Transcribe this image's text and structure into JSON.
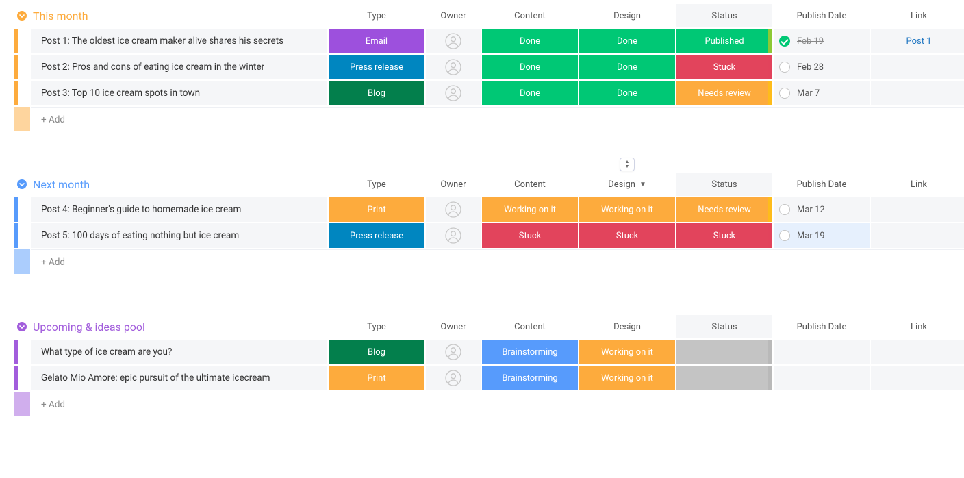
{
  "columns": [
    "Type",
    "Owner",
    "Content",
    "Design",
    "Status",
    "Publish Date",
    "Link"
  ],
  "groups": [
    {
      "id": "this-month",
      "title": "This month",
      "color": "#fdab3d",
      "title_color": "#fdab3d",
      "header_shade_col": "Status",
      "header_dropdown_col": null,
      "header_sort_handle_col": null,
      "add_label": "+ Add",
      "rows": [
        {
          "name": "Post 1: The oldest ice cream maker alive shares his secrets",
          "type": {
            "label": "Email",
            "bg": "#9d50dd"
          },
          "content": {
            "label": "Done",
            "bg": "#00c875"
          },
          "design": {
            "label": "Done",
            "bg": "#00c875"
          },
          "status": {
            "label": "Published",
            "bg": "#00c875",
            "stripe": "#ffcb00"
          },
          "check": "checked",
          "selected": false,
          "date": "Feb 19",
          "date_strike": true,
          "link": "Post 1"
        },
        {
          "name": "Post 2: Pros and cons of eating ice cream in the winter",
          "type": {
            "label": "Press release",
            "bg": "#0086c0"
          },
          "content": {
            "label": "Done",
            "bg": "#00c875"
          },
          "design": {
            "label": "Done",
            "bg": "#00c875"
          },
          "status": {
            "label": "Stuck",
            "bg": "#e2445c",
            "stripe": "#e2445c"
          },
          "check": "ring",
          "selected": false,
          "date": "Feb 28",
          "date_strike": false,
          "link": ""
        },
        {
          "name": "Post 3: Top 10 ice cream spots in town",
          "type": {
            "label": "Blog",
            "bg": "#037f4c"
          },
          "content": {
            "label": "Done",
            "bg": "#00c875"
          },
          "design": {
            "label": "Done",
            "bg": "#00c875"
          },
          "status": {
            "label": "Needs review",
            "bg": "#fdab3d",
            "stripe": "#ffcb00"
          },
          "check": "ring",
          "selected": false,
          "date": "Mar 7",
          "date_strike": false,
          "link": ""
        }
      ]
    },
    {
      "id": "next-month",
      "title": "Next month",
      "color": "#579bfc",
      "title_color": "#579bfc",
      "header_shade_col": "Status",
      "header_dropdown_col": "Design",
      "header_sort_handle_col": "Design",
      "add_label": "+ Add",
      "rows": [
        {
          "name": "Post 4: Beginner's guide to homemade ice cream",
          "type": {
            "label": "Print",
            "bg": "#fdab3d"
          },
          "content": {
            "label": "Working on it",
            "bg": "#fdab3d"
          },
          "design": {
            "label": "Working on it",
            "bg": "#fdab3d"
          },
          "status": {
            "label": "Needs review",
            "bg": "#fdab3d",
            "stripe": "#ffcb00"
          },
          "check": "ring",
          "selected": false,
          "date": "Mar 12",
          "date_strike": false,
          "link": ""
        },
        {
          "name": "Post 5: 100 days of eating nothing but ice cream",
          "type": {
            "label": "Press release",
            "bg": "#0086c0"
          },
          "content": {
            "label": "Stuck",
            "bg": "#e2445c"
          },
          "design": {
            "label": "Stuck",
            "bg": "#e2445c"
          },
          "status": {
            "label": "Stuck",
            "bg": "#e2445c",
            "stripe": "#e2445c"
          },
          "check": "ring",
          "selected": true,
          "date": "Mar 19",
          "date_strike": false,
          "link": ""
        }
      ]
    },
    {
      "id": "upcoming",
      "title": "Upcoming & ideas pool",
      "color": "#a25ddc",
      "title_color": "#a25ddc",
      "header_shade_col": "Status",
      "header_dropdown_col": null,
      "header_sort_handle_col": null,
      "add_label": "+ Add",
      "rows": [
        {
          "name": "What type of ice cream are you?",
          "type": {
            "label": "Blog",
            "bg": "#037f4c"
          },
          "content": {
            "label": "Brainstorming",
            "bg": "#579bfc"
          },
          "design": {
            "label": "Working on it",
            "bg": "#fdab3d"
          },
          "status": {
            "label": "",
            "bg": "#c4c4c4",
            "stripe": "#b0b0b0"
          },
          "check": null,
          "selected": false,
          "date": "",
          "date_strike": false,
          "link": ""
        },
        {
          "name": "Gelato Mio Amore: epic pursuit of the ultimate icecream",
          "type": {
            "label": "Print",
            "bg": "#fdab3d"
          },
          "content": {
            "label": "Brainstorming",
            "bg": "#579bfc"
          },
          "design": {
            "label": "Working on it",
            "bg": "#fdab3d"
          },
          "status": {
            "label": "",
            "bg": "#c4c4c4",
            "stripe": "#b0b0b0"
          },
          "check": null,
          "selected": false,
          "date": "",
          "date_strike": false,
          "link": ""
        }
      ]
    }
  ]
}
